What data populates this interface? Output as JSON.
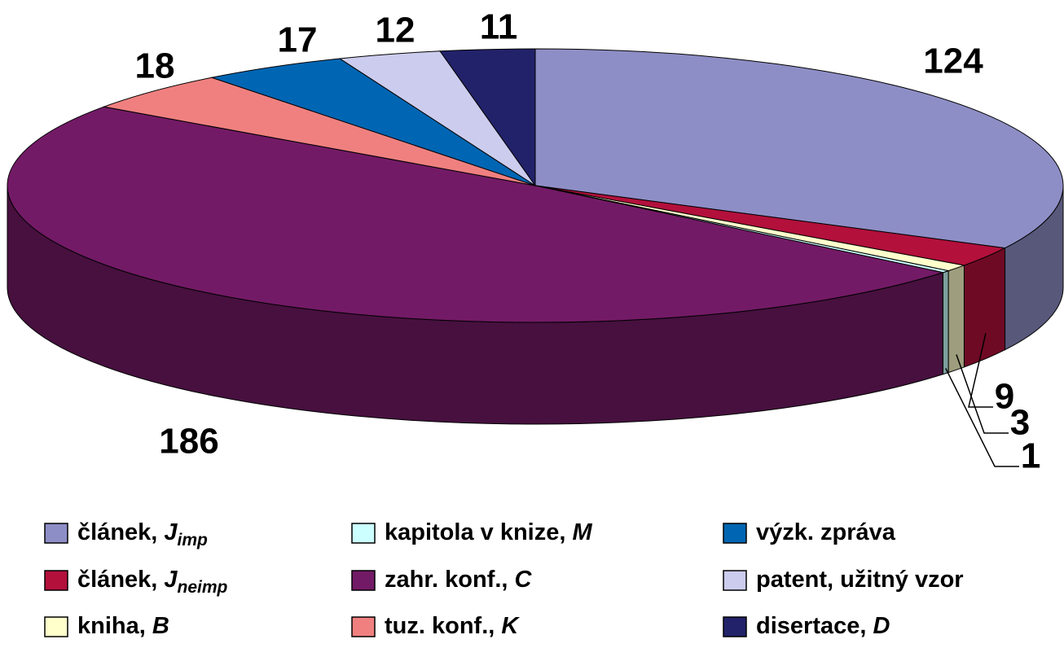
{
  "chart_data": {
    "type": "pie3d",
    "categories": [
      {
        "text": "článek, ",
        "italic": "J",
        "sub": "imp"
      },
      {
        "text": "článek, ",
        "italic": "J",
        "sub": "neimp"
      },
      {
        "text": "kniha, ",
        "italic": "B"
      },
      {
        "text": "kapitola v knize, ",
        "italic": "M"
      },
      {
        "text": "zahr. konf., ",
        "italic": "C"
      },
      {
        "text": "tuz. konf., ",
        "italic": "K"
      },
      {
        "text": "výzk. zpráva"
      },
      {
        "text": "patent, užitný vzor"
      },
      {
        "text": "disertace, ",
        "italic": "D"
      }
    ],
    "values": [
      124,
      9,
      3,
      1,
      186,
      18,
      17,
      12,
      11
    ],
    "colors": [
      "#8e8ec6",
      "#b3103c",
      "#ffffcc",
      "#ccffff",
      "#731a66",
      "#f08080",
      "#0066b3",
      "#ccccee",
      "#22226a"
    ]
  }
}
